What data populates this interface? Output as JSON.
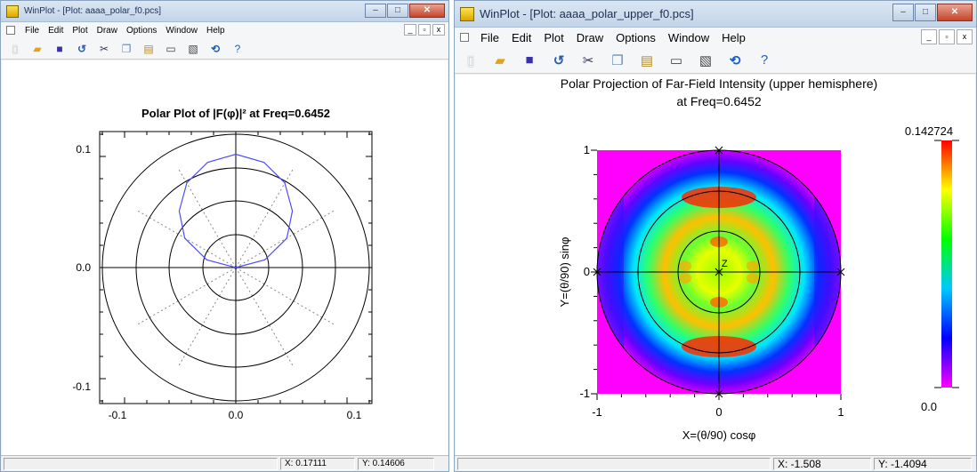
{
  "left_window": {
    "title": "WinPlot - [Plot: aaaa_polar_f0.pcs]",
    "menu": [
      "File",
      "Edit",
      "Plot",
      "Draw",
      "Options",
      "Window",
      "Help"
    ],
    "plot_title": "Polar Plot of |F(φ)|² at Freq=0.6452",
    "status": {
      "x": "X: 0.17111",
      "y": "Y: 0.14606"
    }
  },
  "right_window": {
    "title": "WinPlot - [Plot: aaaa_polar_upper_f0.pcs]",
    "menu": [
      "File",
      "Edit",
      "Plot",
      "Draw",
      "Options",
      "Window",
      "Help"
    ],
    "plot_title_line1": "Polar Projection of Far-Field Intensity (upper hemisphere)",
    "plot_title_line2": "at Freq=0.6452",
    "xlabel": "X=(θ/90) cosφ",
    "ylabel": "Y=(θ/90) sinφ",
    "center_label": "Z",
    "colorbar_max": "0.142724",
    "colorbar_min": "0.0",
    "status": {
      "x": "X: -1.508",
      "y": "Y: -1.4094"
    }
  },
  "toolbar_icons": [
    "new-file-icon",
    "open-folder-icon",
    "save-icon",
    "undo-icon",
    "cut-icon",
    "copy-icon",
    "paste-icon",
    "properties-icon",
    "chart-icon",
    "refresh-icon",
    "help-icon"
  ],
  "chart_data": [
    {
      "type": "line",
      "title": "Polar Plot of |F(φ)|² at Freq=0.6452",
      "coordinate_system": "polar",
      "xlim": [
        -0.12,
        0.12
      ],
      "ylim": [
        -0.12,
        0.12
      ],
      "x_ticks": [
        "-0.1",
        "0.0",
        "0.1"
      ],
      "y_ticks": [
        "-0.1",
        "0.0",
        "0.1"
      ],
      "radial_rings": [
        0.03,
        0.06,
        0.09,
        0.12
      ],
      "series_color": "#4d4dff",
      "series": [
        {
          "phi_deg": [
            0,
            15,
            30,
            45,
            60,
            75,
            90,
            105,
            120,
            135,
            150,
            165,
            180
          ],
          "r": [
            0.0,
            0.027,
            0.053,
            0.072,
            0.088,
            0.098,
            0.102,
            0.098,
            0.088,
            0.072,
            0.053,
            0.027,
            0.0
          ]
        }
      ]
    },
    {
      "type": "heatmap",
      "title": "Polar Projection of Far-Field Intensity (upper hemisphere) at Freq=0.6452",
      "xlabel": "X=(θ/90) cosφ",
      "ylabel": "Y=(θ/90) sinφ",
      "xlim": [
        -1,
        1
      ],
      "ylim": [
        -1,
        1
      ],
      "x_ticks": [
        "-1",
        "0",
        "1"
      ],
      "y_ticks": [
        "-1",
        "0",
        "1"
      ],
      "colorbar_range": [
        0.0,
        0.142724
      ],
      "colormap": [
        "#ff00ff",
        "#0000ff",
        "#00c8ff",
        "#00ff00",
        "#ffff00",
        "#ff0000"
      ]
    }
  ]
}
